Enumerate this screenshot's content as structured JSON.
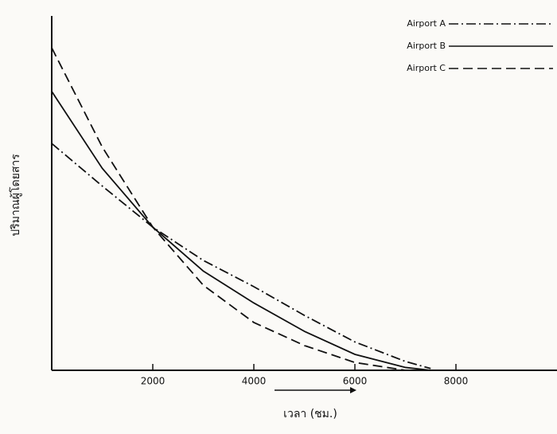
{
  "chart_data": {
    "type": "line",
    "x_label": "เวลา (ชม.)",
    "y_label": "ปริมาณผู้โดยสาร",
    "x": [
      0,
      1000,
      2000,
      3000,
      4000,
      5000,
      6000,
      7000,
      7500
    ],
    "series": [
      {
        "name": "Airport A",
        "color": "#111111",
        "dash": "dashdot",
        "values": [
          64,
          52,
          40.4,
          31,
          23.6,
          15.5,
          8,
          2.5,
          0.5
        ]
      },
      {
        "name": "Airport B",
        "color": "#111111",
        "dash": "solid",
        "values": [
          78.7,
          57,
          40.4,
          28,
          19,
          11,
          4.5,
          0.8,
          0
        ]
      },
      {
        "name": "Airport C",
        "color": "#111111",
        "dash": "dashed",
        "values": [
          91,
          63,
          40.4,
          24,
          13.5,
          7,
          2.2,
          0,
          0
        ]
      }
    ],
    "xlim": [
      0,
      10000
    ],
    "xticks": [
      2000,
      4000,
      6000,
      8000
    ],
    "ylim": [
      0,
      100
    ],
    "grid": false,
    "legend": "top-right"
  }
}
